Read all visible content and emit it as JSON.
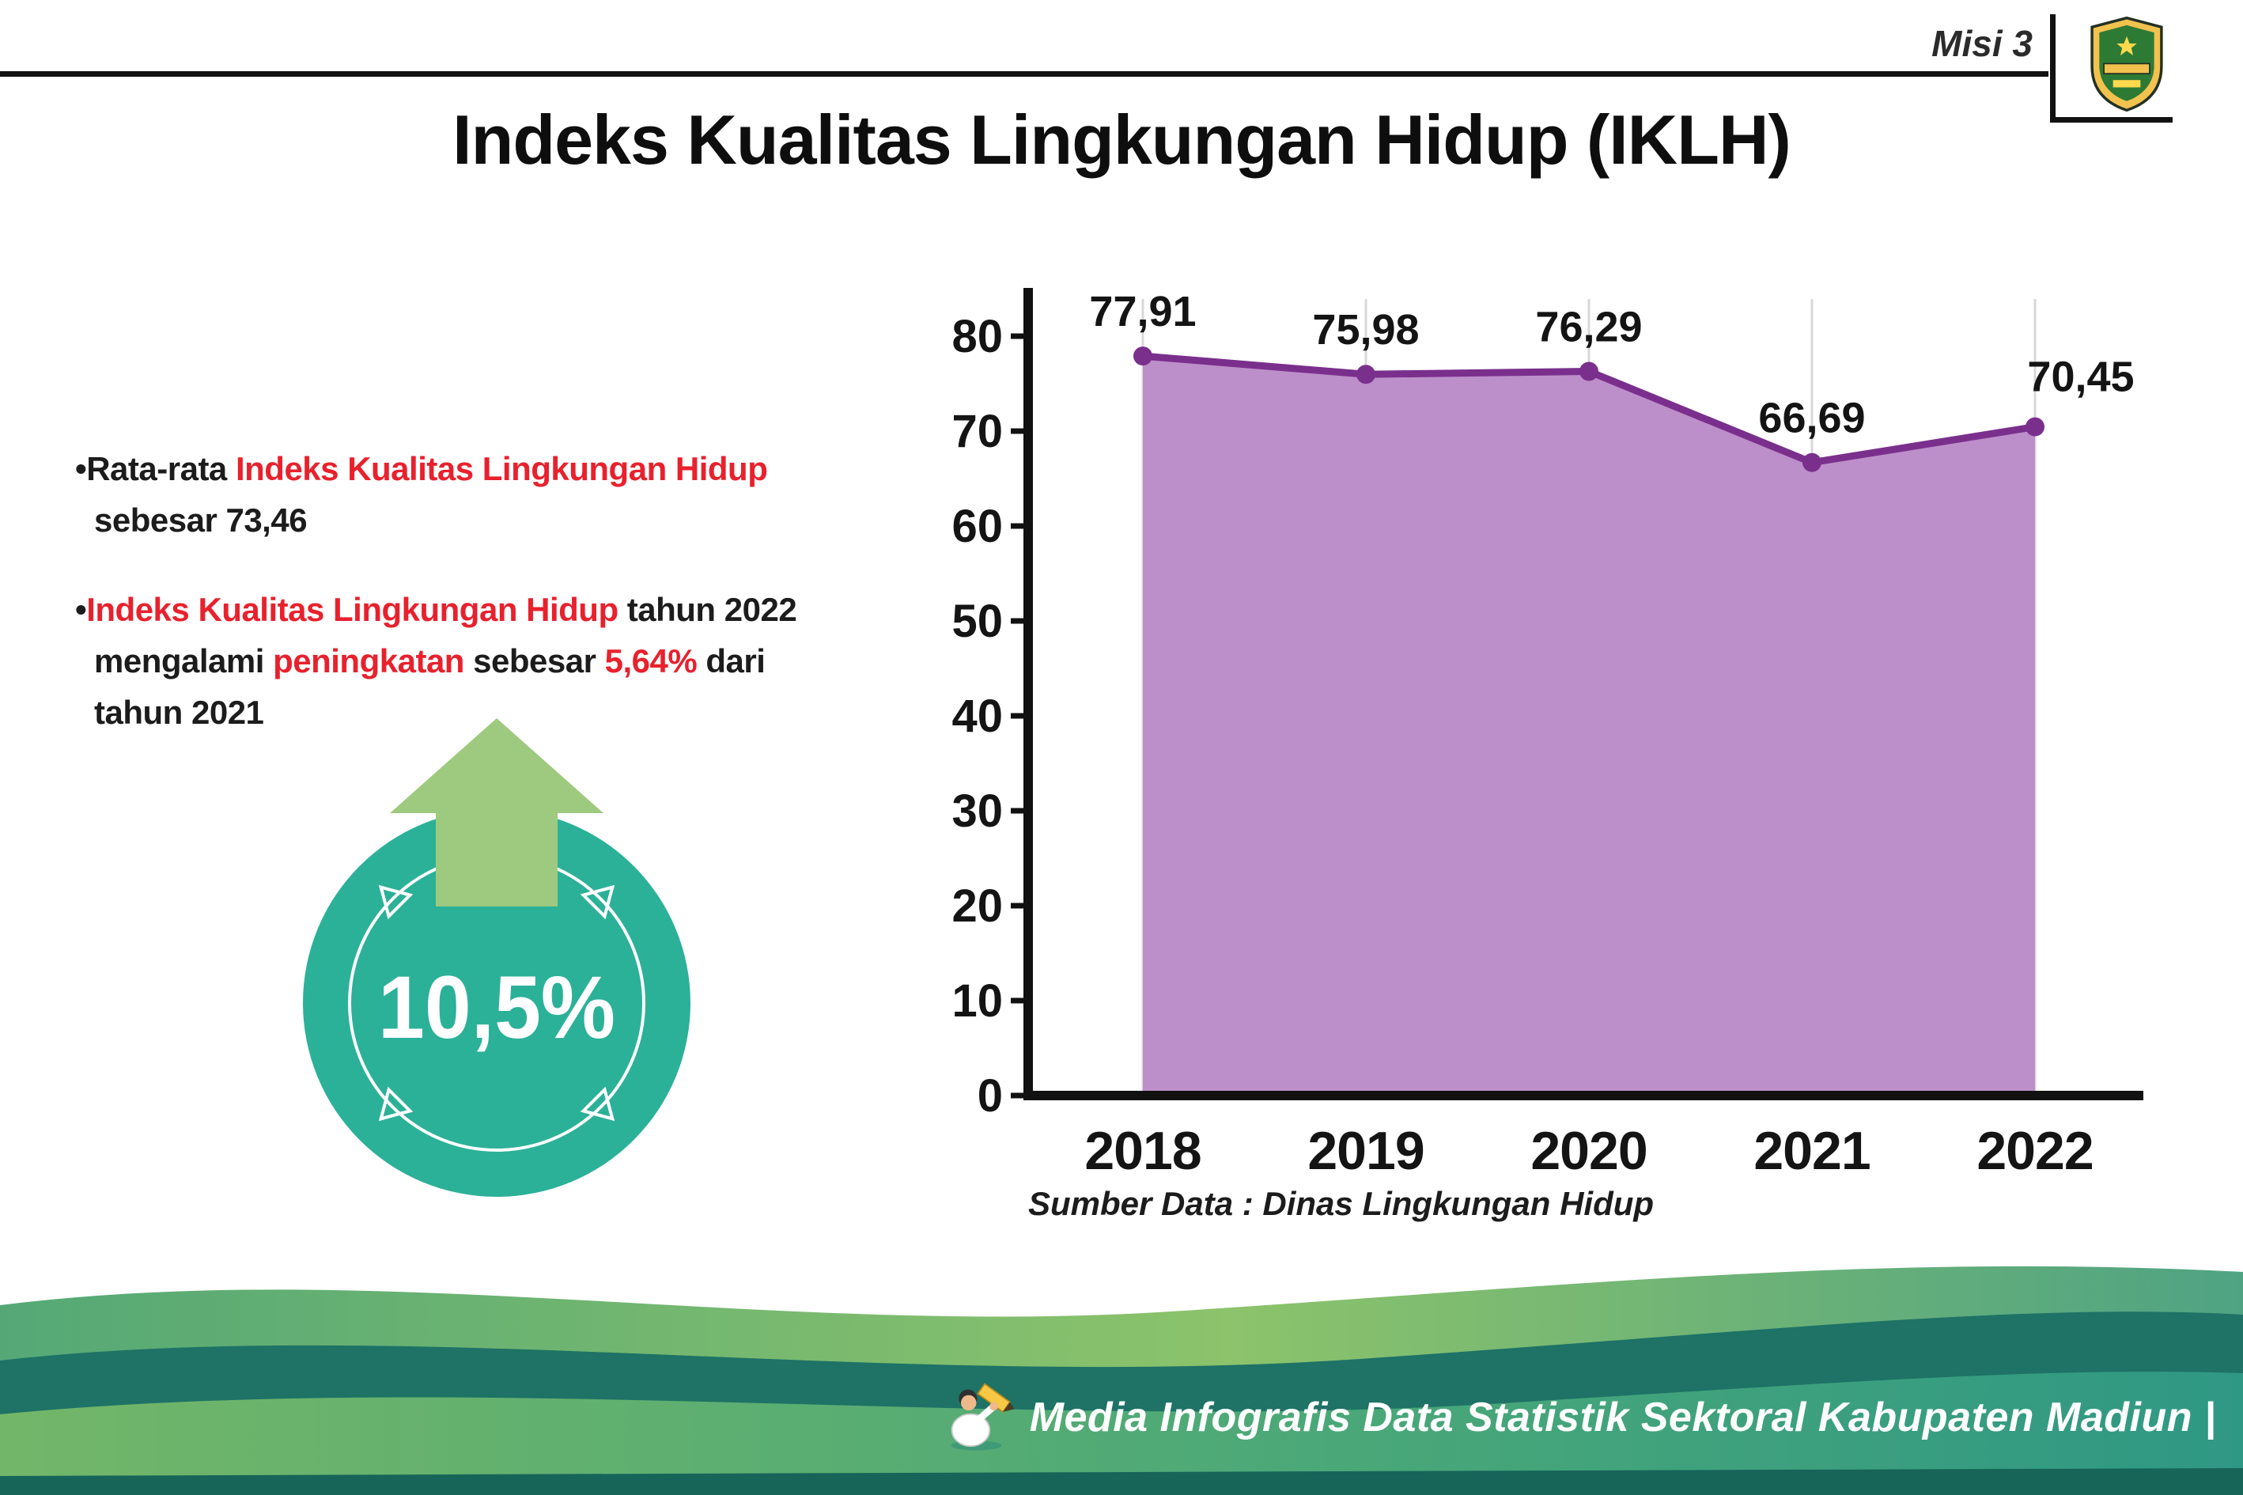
{
  "header": {
    "misi_label": "Misi 3",
    "title": "Indeks Kualitas Lingkungan Hidup (IKLH)"
  },
  "bullets": {
    "dot": "•",
    "b1": {
      "l1s1": "Rata-rata ",
      "l1s2": "Indeks Kualitas Lingkungan Hidup",
      "l2": "sebesar 73,46"
    },
    "b2": {
      "l1s1": "Indeks Kualitas Lingkungan Hidup",
      "l1s2": " tahun 2022",
      "l2s1": "mengalami ",
      "l2s2": "peningkatan",
      "l2s3": " sebesar ",
      "l2s4": "5,64%",
      "l2s5": " dari",
      "l3": "tahun 2021"
    }
  },
  "badge": {
    "value": "10,5%",
    "circle_color": "#2bb198",
    "arrow_color": "#9dca7e",
    "arrow_outline": "#1d3a66"
  },
  "chart_data": {
    "type": "area",
    "title": "Indeks Kualitas Lingkungan Hidup (IKLH)",
    "categories": [
      "2018",
      "2019",
      "2020",
      "2021",
      "2022"
    ],
    "values": [
      77.91,
      75.98,
      76.29,
      66.69,
      70.45
    ],
    "value_labels": [
      "77,91",
      "75,98",
      "76,29",
      "66,69",
      "70,45"
    ],
    "ylim": [
      0,
      80
    ],
    "ytick_step": 10,
    "grid": "vertical",
    "legend": "none",
    "fill_color": "#bd8fca",
    "line_color": "#7a2f8d",
    "source": "Sumber Data : Dinas Lingkungan Hidup"
  },
  "footer": {
    "caption": "Media Infografis Data Statistik Sektoral Kabupaten Madiun |"
  }
}
